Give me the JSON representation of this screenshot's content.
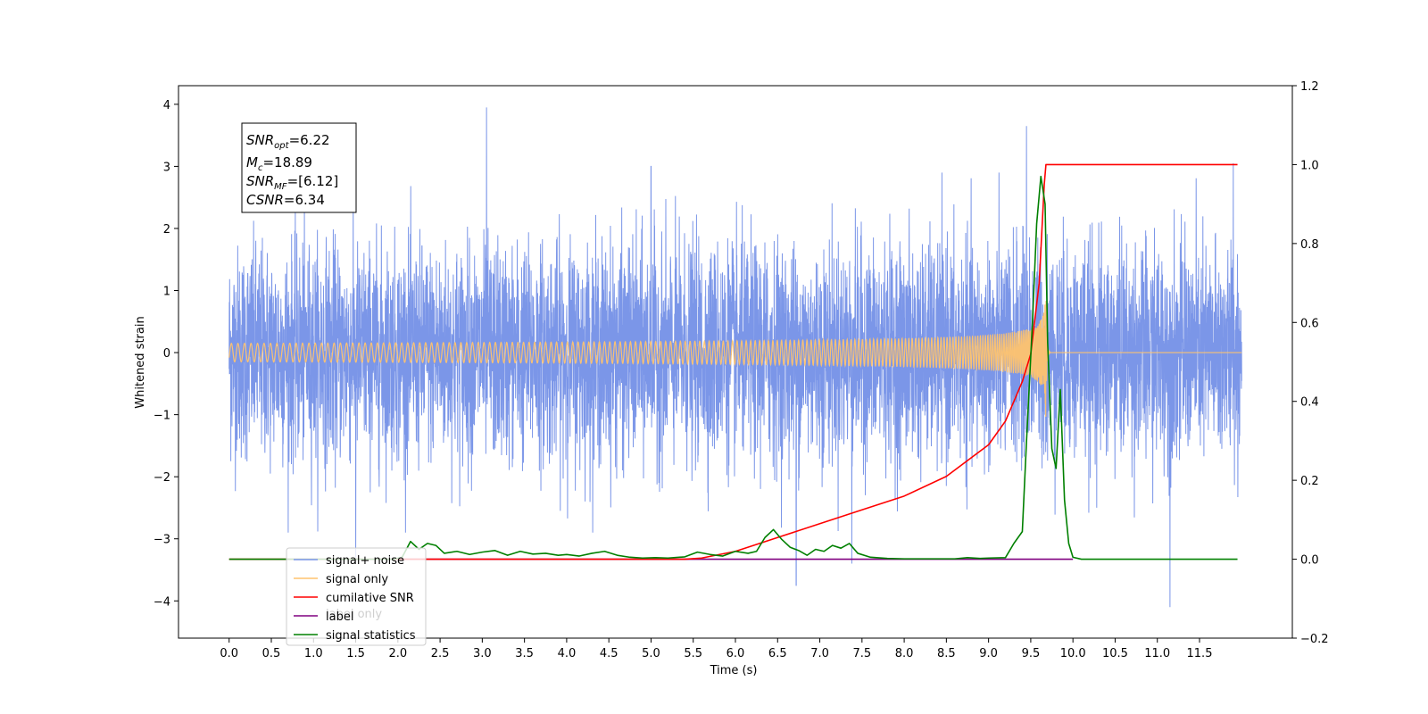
{
  "chart_data": {
    "type": "line",
    "xlabel": "Time (s)",
    "ylabel": "Whitened strain",
    "xlim": [
      -0.6,
      12.6
    ],
    "ylim": [
      -4.6,
      4.3
    ],
    "y2lim": [
      -0.2,
      1.2
    ],
    "x_ticks": [
      "0.0",
      "0.5",
      "1.0",
      "1.5",
      "2.0",
      "2.5",
      "3.0",
      "3.5",
      "4.0",
      "4.5",
      "5.0",
      "5.5",
      "6.0",
      "6.5",
      "7.0",
      "7.5",
      "8.0",
      "8.5",
      "9.0",
      "9.5",
      "10.0",
      "10.5",
      "11.0",
      "11.5"
    ],
    "y_ticks": [
      "4",
      "3",
      "2",
      "1",
      "0",
      "−1",
      "−2",
      "−3",
      "−4"
    ],
    "y2_ticks": [
      "1.2",
      "1.0",
      "0.8",
      "0.6",
      "0.4",
      "0.2",
      "0.0",
      "−0.2"
    ],
    "annotation": {
      "snr_opt": {
        "name": "SNR",
        "sub": "opt",
        "value": "=6.22"
      },
      "mc": {
        "name": "M",
        "sub": "c",
        "value": "=18.89"
      },
      "snr_mf": {
        "name": "SNR",
        "sub": "MF",
        "value": "=[6.12]"
      },
      "csnr": {
        "name": "CSNR",
        "sub": "",
        "value": "=6.34"
      }
    },
    "legend": {
      "placement": "lower-left",
      "entries": [
        {
          "label": "signal+ noise",
          "color": "#7b96e8"
        },
        {
          "label": "signal only",
          "color": "#ffc36e"
        },
        {
          "label": "cumilative SNR",
          "color": "#ff0000"
        },
        {
          "label": "label",
          "color": "#800080"
        },
        {
          "label": "signal statistics",
          "color": "#008000"
        }
      ],
      "hidden_text": "label only"
    },
    "series": [
      {
        "name": "signal+ noise",
        "axis": "left",
        "color": "#7b96e8",
        "description": "whitened noisy strain, approx. unit-variance noise from t=0 to t=12",
        "envelope": {
          "typical_min": -2.0,
          "typical_max": 2.0
        },
        "peaks": [
          [
            1.5,
            -3.3
          ],
          [
            3.05,
            3.95
          ],
          [
            5.0,
            3.0
          ],
          [
            6.72,
            -3.75
          ],
          [
            7.38,
            -3.4
          ],
          [
            9.45,
            3.65
          ],
          [
            11.15,
            -4.1
          ],
          [
            11.9,
            3.05
          ]
        ]
      },
      {
        "name": "signal only",
        "axis": "left",
        "color": "#ffc36e",
        "description": "inspiral chirp growing until merger near t=9.68",
        "merger_time": 9.68,
        "peak_amplitude": 1.1
      },
      {
        "name": "cumilative SNR",
        "axis": "right",
        "color": "#ff0000",
        "points": [
          [
            0.0,
            0.0
          ],
          [
            5.4,
            0.0
          ],
          [
            5.6,
            0.003
          ],
          [
            6.0,
            0.02
          ],
          [
            6.5,
            0.055
          ],
          [
            7.0,
            0.09
          ],
          [
            7.5,
            0.125
          ],
          [
            8.0,
            0.16
          ],
          [
            8.5,
            0.21
          ],
          [
            9.0,
            0.29
          ],
          [
            9.2,
            0.35
          ],
          [
            9.4,
            0.45
          ],
          [
            9.5,
            0.52
          ],
          [
            9.6,
            0.7
          ],
          [
            9.66,
            0.95
          ],
          [
            9.68,
            1.0
          ],
          [
            11.95,
            1.0
          ]
        ]
      },
      {
        "name": "label",
        "axis": "right",
        "color": "#800080",
        "points": [
          [
            2.0,
            0.0
          ],
          [
            10.0,
            0.0
          ]
        ]
      },
      {
        "name": "signal statistics",
        "axis": "right",
        "color": "#008000",
        "points": [
          [
            0.0,
            0.0
          ],
          [
            1.95,
            0.0
          ],
          [
            2.05,
            0.005
          ],
          [
            2.15,
            0.045
          ],
          [
            2.25,
            0.025
          ],
          [
            2.35,
            0.04
          ],
          [
            2.45,
            0.035
          ],
          [
            2.55,
            0.015
          ],
          [
            2.7,
            0.02
          ],
          [
            2.85,
            0.012
          ],
          [
            3.0,
            0.018
          ],
          [
            3.15,
            0.022
          ],
          [
            3.3,
            0.01
          ],
          [
            3.45,
            0.02
          ],
          [
            3.6,
            0.013
          ],
          [
            3.75,
            0.015
          ],
          [
            3.9,
            0.01
          ],
          [
            4.0,
            0.012
          ],
          [
            4.15,
            0.008
          ],
          [
            4.3,
            0.015
          ],
          [
            4.45,
            0.02
          ],
          [
            4.6,
            0.01
          ],
          [
            4.75,
            0.005
          ],
          [
            4.9,
            0.003
          ],
          [
            5.05,
            0.004
          ],
          [
            5.2,
            0.003
          ],
          [
            5.4,
            0.006
          ],
          [
            5.55,
            0.018
          ],
          [
            5.7,
            0.012
          ],
          [
            5.85,
            0.008
          ],
          [
            6.0,
            0.02
          ],
          [
            6.15,
            0.015
          ],
          [
            6.25,
            0.02
          ],
          [
            6.35,
            0.055
          ],
          [
            6.45,
            0.075
          ],
          [
            6.55,
            0.05
          ],
          [
            6.65,
            0.03
          ],
          [
            6.75,
            0.022
          ],
          [
            6.85,
            0.01
          ],
          [
            6.95,
            0.025
          ],
          [
            7.05,
            0.02
          ],
          [
            7.15,
            0.035
          ],
          [
            7.25,
            0.028
          ],
          [
            7.35,
            0.04
          ],
          [
            7.45,
            0.015
          ],
          [
            7.6,
            0.005
          ],
          [
            7.8,
            0.002
          ],
          [
            8.0,
            0.001
          ],
          [
            8.6,
            0.001
          ],
          [
            8.75,
            0.004
          ],
          [
            8.9,
            0.002
          ],
          [
            9.0,
            0.003
          ],
          [
            9.2,
            0.004
          ],
          [
            9.3,
            0.04
          ],
          [
            9.4,
            0.07
          ],
          [
            9.45,
            0.3
          ],
          [
            9.52,
            0.6
          ],
          [
            9.57,
            0.85
          ],
          [
            9.62,
            0.97
          ],
          [
            9.67,
            0.9
          ],
          [
            9.7,
            0.55
          ],
          [
            9.75,
            0.28
          ],
          [
            9.8,
            0.23
          ],
          [
            9.85,
            0.43
          ],
          [
            9.9,
            0.15
          ],
          [
            9.95,
            0.04
          ],
          [
            10.0,
            0.005
          ],
          [
            10.1,
            0.0
          ],
          [
            11.95,
            0.0
          ]
        ]
      }
    ]
  }
}
